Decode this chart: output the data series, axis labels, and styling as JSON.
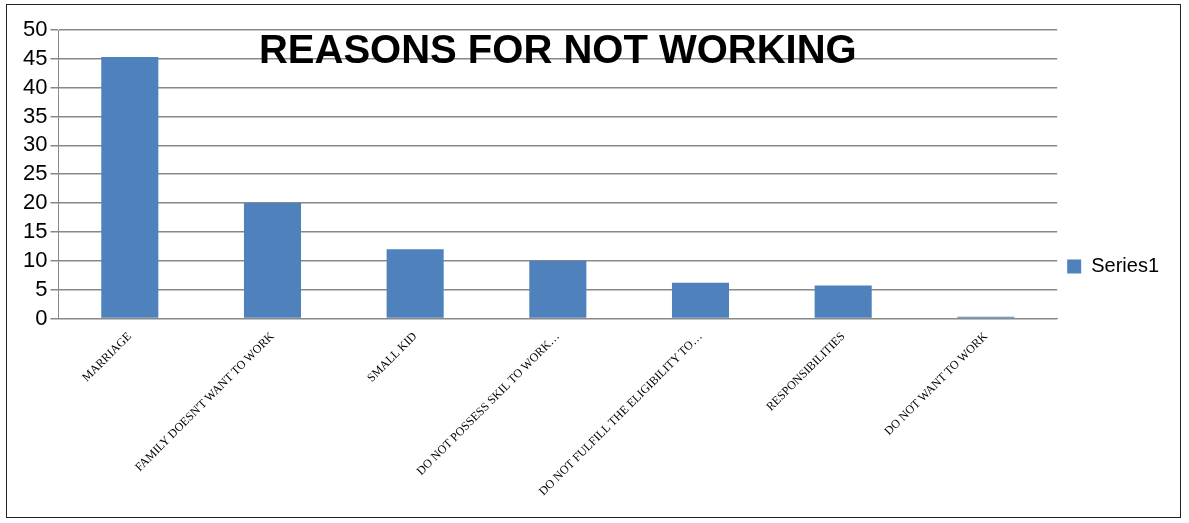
{
  "chart_data": {
    "type": "bar",
    "title": "REASONS FOR NOT WORKING",
    "categories": [
      "MARRIAGE",
      "FAMILY DOESN'T WANT TO WORK",
      "SMALL KID",
      "DO NOT POSSESS SKIL TO WORK…",
      "DO NOT FULFILL THE ELIGIBILITY TO…",
      "RESPONSIBILITIES",
      "DO NOT WANT TO WORK"
    ],
    "series": [
      {
        "name": "Series1",
        "color": "#4f81bd",
        "values": [
          45.3,
          20,
          12,
          10,
          6.2,
          5.7,
          0.3
        ]
      }
    ],
    "ylim": [
      0,
      50
    ],
    "yticks": [
      0,
      5,
      10,
      15,
      20,
      25,
      30,
      35,
      40,
      45,
      50
    ],
    "grid": "y",
    "legend": "right"
  }
}
